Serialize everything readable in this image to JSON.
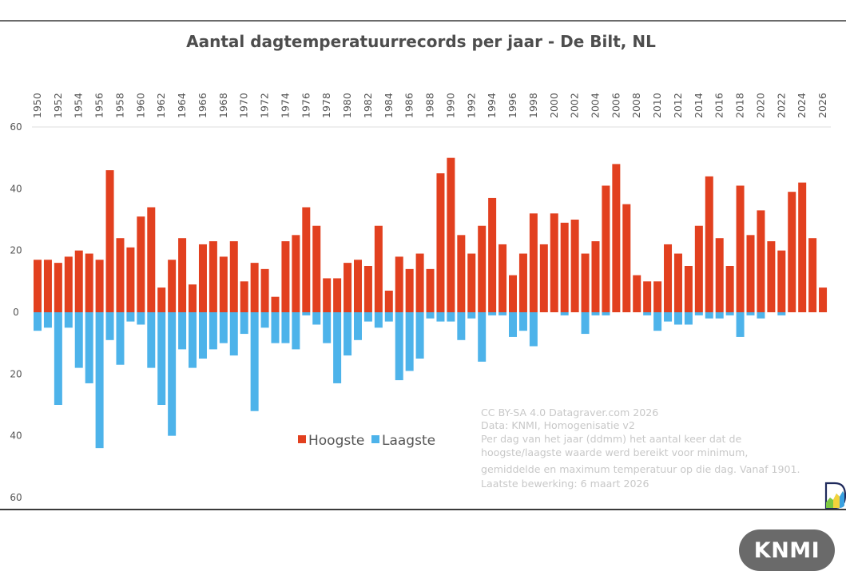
{
  "badge": {
    "label": "KNMI"
  },
  "chart_data": {
    "type": "bar",
    "title": "Aantal dagtemperatuurrecords per jaar - De Bilt, NL",
    "xlabel": "",
    "ylabel": "",
    "ylim": [
      -60,
      60
    ],
    "y_ticks": [
      60,
      40,
      20,
      0,
      20,
      40,
      60
    ],
    "y_tick_values": [
      60,
      40,
      20,
      0,
      -20,
      -40,
      -60
    ],
    "x_tick_labels": [
      "1950",
      "1952",
      "1954",
      "1956",
      "1958",
      "1960",
      "1962",
      "1964",
      "1966",
      "1968",
      "1970",
      "1972",
      "1974",
      "1976",
      "1978",
      "1980",
      "1982",
      "1984",
      "1986",
      "1988",
      "1990",
      "1992",
      "1994",
      "1996",
      "1998",
      "2000",
      "2002",
      "2004",
      "2006",
      "2008",
      "2010",
      "2012",
      "2014",
      "2016",
      "2018",
      "2020",
      "2022",
      "2024",
      "2026"
    ],
    "x_axis_position": "top",
    "grid": false,
    "legend_position": "bottom-center",
    "categories": [
      1950,
      1951,
      1952,
      1953,
      1954,
      1955,
      1956,
      1957,
      1958,
      1959,
      1960,
      1961,
      1962,
      1963,
      1964,
      1965,
      1966,
      1967,
      1968,
      1969,
      1970,
      1971,
      1972,
      1973,
      1974,
      1975,
      1976,
      1977,
      1978,
      1979,
      1980,
      1981,
      1982,
      1983,
      1984,
      1985,
      1986,
      1987,
      1988,
      1989,
      1990,
      1991,
      1992,
      1993,
      1994,
      1995,
      1996,
      1997,
      1998,
      1999,
      2000,
      2001,
      2002,
      2003,
      2004,
      2005,
      2006,
      2007,
      2008,
      2009,
      2010,
      2011,
      2012,
      2013,
      2014,
      2015,
      2016,
      2017,
      2018,
      2019,
      2020,
      2021,
      2022,
      2023,
      2024,
      2025,
      2026
    ],
    "series": [
      {
        "name": "Hoogste",
        "color": "#e2401f",
        "direction": "up",
        "values": [
          17,
          17,
          16,
          18,
          20,
          19,
          17,
          46,
          24,
          21,
          31,
          34,
          8,
          17,
          24,
          9,
          22,
          23,
          18,
          23,
          10,
          16,
          14,
          5,
          23,
          25,
          34,
          28,
          11,
          11,
          16,
          17,
          15,
          28,
          7,
          18,
          14,
          19,
          14,
          45,
          50,
          25,
          19,
          28,
          37,
          22,
          12,
          19,
          32,
          22,
          32,
          29,
          30,
          19,
          23,
          41,
          48,
          35,
          12,
          10,
          10,
          22,
          19,
          15,
          28,
          44,
          24,
          15,
          41,
          25,
          33,
          23,
          20,
          39,
          42,
          24,
          8
        ]
      },
      {
        "name": "Laagste",
        "color": "#4db3ea",
        "direction": "down",
        "values": [
          6,
          5,
          30,
          5,
          18,
          23,
          44,
          9,
          17,
          3,
          4,
          18,
          30,
          40,
          12,
          18,
          15,
          12,
          10,
          14,
          7,
          32,
          5,
          10,
          10,
          12,
          1,
          4,
          10,
          23,
          14,
          9,
          3,
          5,
          3,
          22,
          19,
          15,
          2,
          3,
          3,
          9,
          2,
          16,
          1,
          1,
          8,
          6,
          11,
          0,
          0,
          1,
          0,
          7,
          1,
          1,
          0,
          0,
          0,
          1,
          6,
          3,
          4,
          4,
          1,
          2,
          2,
          1,
          8,
          1,
          2,
          0,
          1,
          0,
          0,
          0,
          0
        ]
      }
    ],
    "annotations": [
      "CC BY-SA 4.0  Datagraver.com 2026",
      "Data: KNMI, Homogenisatie v2",
      "Per dag van het jaar (ddmm) het aantal keer dat de",
      "hoogste/laagste waarde werd bereikt voor minimum,",
      "gemiddelde en maximum temperatuur op die dag. Vanaf 1901.",
      "Laatste bewerking: 6 maart 2026"
    ]
  }
}
